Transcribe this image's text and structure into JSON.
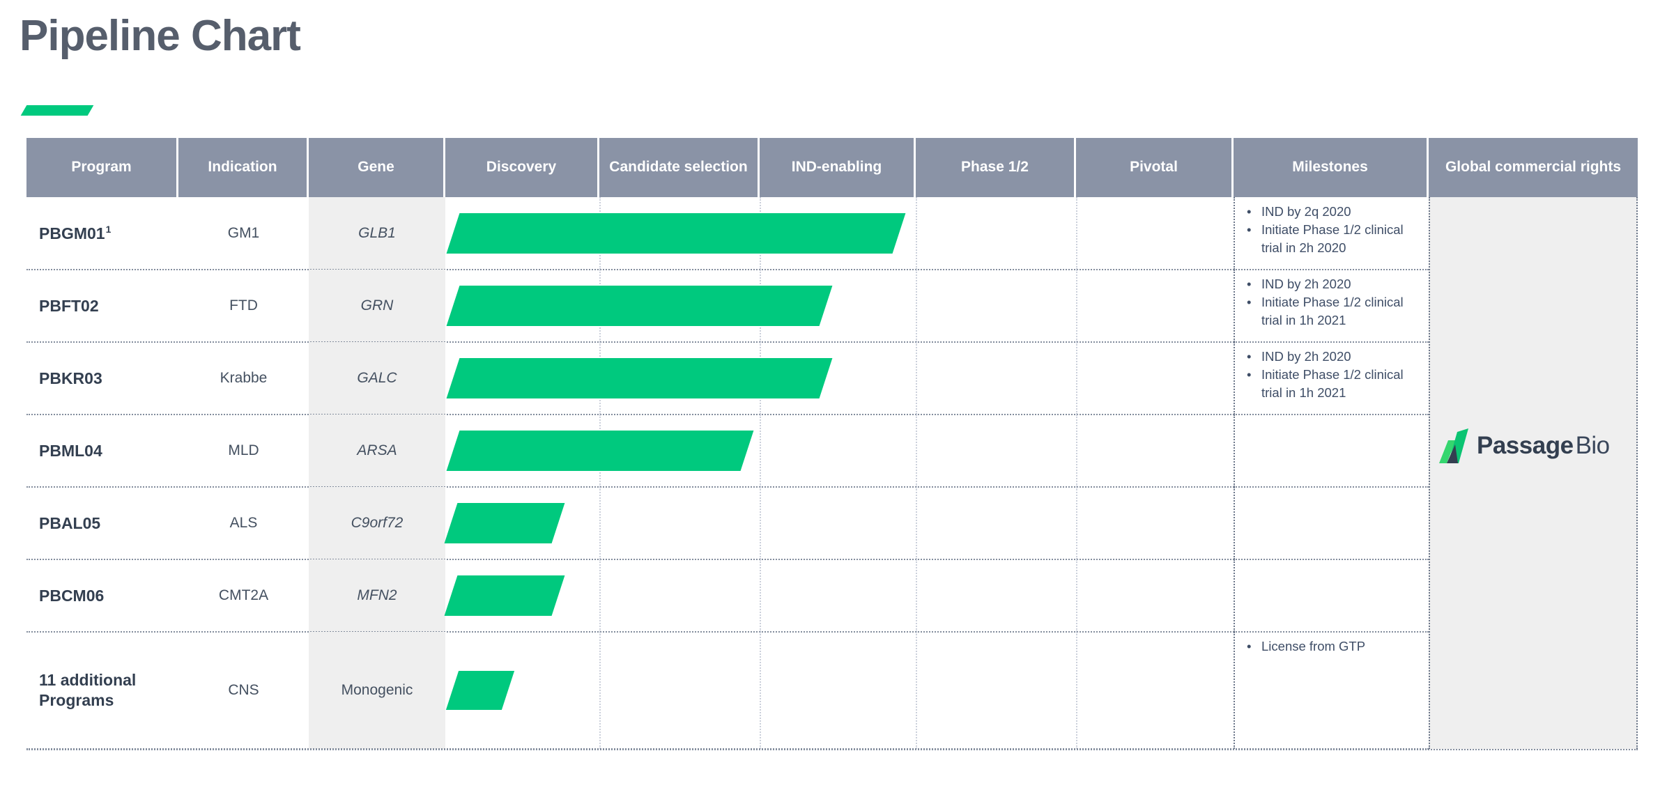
{
  "title": "Pipeline Chart",
  "colors": {
    "brand_green": "#00C97E",
    "header_bg": "#8A93A6",
    "navy_text": "#333F50",
    "light_gray_bg": "#EFEFEF"
  },
  "table": {
    "columns": [
      "Program",
      "Indication",
      "Gene",
      "Discovery",
      "Candidate selection",
      "IND-enabling",
      "Phase 1/2",
      "Pivotal",
      "Milestones",
      "Global commercial rights"
    ]
  },
  "logo": {
    "bold": "Passage",
    "light": "Bio"
  },
  "chart_data": {
    "type": "table",
    "title": "Pipeline Chart",
    "stages": [
      "Discovery",
      "Candidate selection",
      "IND-enabling",
      "Phase 1/2",
      "Pivotal"
    ],
    "progress_units": "stages completed (Discovery = 1)",
    "global_commercial_rights": "Passage Bio",
    "rows": [
      {
        "program": "PBGM01",
        "footnote": "1",
        "indication": "GM1",
        "gene": "GLB1",
        "progress": 2.9,
        "bar": {
          "start_pct": 0.97,
          "width_pct": 56.6
        },
        "milestones": [
          "IND by 2q 2020",
          "Initiate Phase 1/2 clinical trial in 2h 2020"
        ]
      },
      {
        "program": "PBFT02",
        "indication": "FTD",
        "gene": "GRN",
        "progress": 2.4,
        "bar": {
          "start_pct": 0.97,
          "width_pct": 47.3
        },
        "milestones": [
          "IND by 2h 2020",
          "Initiate Phase 1/2 clinical trial in 1h 2021"
        ]
      },
      {
        "program": "PBKR03",
        "indication": "Krabbe",
        "gene": "GALC",
        "progress": 2.4,
        "bar": {
          "start_pct": 0.97,
          "width_pct": 47.3
        },
        "milestones": [
          "IND by 2h 2020",
          "Initiate Phase 1/2 clinical trial in 1h 2021"
        ]
      },
      {
        "program": "PBML04",
        "indication": "MLD",
        "gene": "ARSA",
        "progress": 1.9,
        "bar": {
          "start_pct": 0.97,
          "width_pct": 37.3
        },
        "milestones": []
      },
      {
        "program": "PBAL05",
        "indication": "ALS",
        "gene": "C9orf72",
        "progress": 0.7,
        "bar": {
          "start_pct": 0.7,
          "width_pct": 13.6
        },
        "milestones": []
      },
      {
        "program": "PBCM06",
        "indication": "CMT2A",
        "gene": "MFN2",
        "progress": 0.7,
        "bar": {
          "start_pct": 0.7,
          "width_pct": 13.6
        },
        "milestones": []
      },
      {
        "program": "11 additional Programs",
        "indication": "CNS",
        "gene": "Monogenic",
        "progress": 0.35,
        "bar": {
          "start_pct": 0.9,
          "width_pct": 7.1
        },
        "milestones": [
          "License from GTP"
        ]
      }
    ]
  }
}
